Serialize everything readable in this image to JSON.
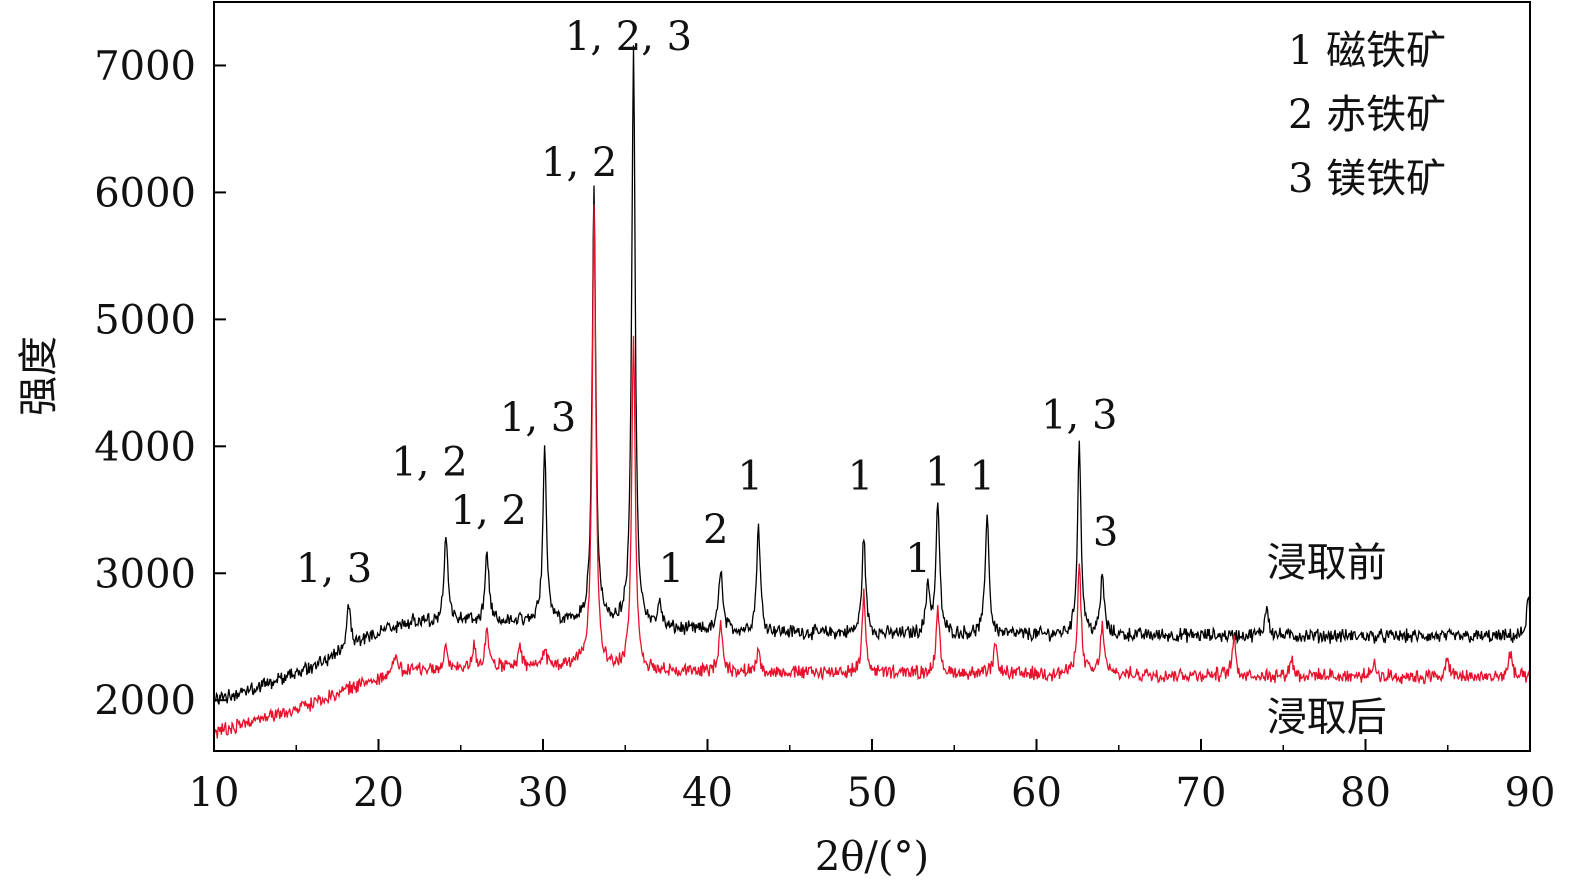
{
  "chart_data": {
    "type": "line",
    "xlabel": "2θ/(°)",
    "ylabel": "强度",
    "xlim": [
      10,
      90
    ],
    "ylim": [
      1600,
      7500
    ],
    "xticks": [
      10,
      20,
      30,
      40,
      50,
      60,
      70,
      80,
      90
    ],
    "yticks": [
      2000,
      3000,
      4000,
      5000,
      6000,
      7000
    ],
    "legend_placement": "top-right",
    "legend": [
      {
        "text": "1 磁铁矿"
      },
      {
        "text": "2 赤铁矿"
      },
      {
        "text": "3 镁铁矿"
      }
    ],
    "series": [
      {
        "name": "浸取前",
        "color": "#000000",
        "label_pos": [
          74,
          2980
        ],
        "baseline": [
          [
            10,
            2000
          ],
          [
            15,
            2200
          ],
          [
            20,
            2530
          ],
          [
            22,
            2620
          ],
          [
            32,
            2620
          ],
          [
            36,
            2560
          ],
          [
            50,
            2520
          ],
          [
            90,
            2500
          ]
        ],
        "peaks": [
          [
            18.2,
            2750
          ],
          [
            24.1,
            3320
          ],
          [
            26.6,
            3170
          ],
          [
            30.1,
            3980
          ],
          [
            33.1,
            6020
          ],
          [
            35.5,
            7100
          ],
          [
            37.1,
            2760
          ],
          [
            40.8,
            3050
          ],
          [
            43.1,
            3380
          ],
          [
            49.5,
            3300
          ],
          [
            53.4,
            2910
          ],
          [
            54.0,
            3560
          ],
          [
            57.0,
            3490
          ],
          [
            62.6,
            4020
          ],
          [
            64.0,
            2990
          ],
          [
            74.0,
            2750
          ],
          [
            89.9,
            2790
          ]
        ]
      },
      {
        "name": "浸取后",
        "color": "#e8102a",
        "label_pos": [
          74,
          1760
        ],
        "baseline": [
          [
            10,
            1750
          ],
          [
            15,
            1930
          ],
          [
            20,
            2180
          ],
          [
            22,
            2240
          ],
          [
            32,
            2270
          ],
          [
            35,
            2230
          ],
          [
            90,
            2180
          ]
        ],
        "peaks": [
          [
            21.0,
            2370
          ],
          [
            24.1,
            2400
          ],
          [
            25.8,
            2420
          ],
          [
            26.6,
            2580
          ],
          [
            28.6,
            2400
          ],
          [
            30.1,
            2420
          ],
          [
            33.1,
            5900
          ],
          [
            35.5,
            4860
          ],
          [
            40.8,
            2630
          ],
          [
            43.1,
            2390
          ],
          [
            49.5,
            2820
          ],
          [
            54.0,
            2700
          ],
          [
            57.5,
            2430
          ],
          [
            62.6,
            3050
          ],
          [
            64.0,
            2600
          ],
          [
            72.0,
            2480
          ],
          [
            75.5,
            2330
          ],
          [
            80.5,
            2280
          ],
          [
            85.0,
            2320
          ],
          [
            88.8,
            2380
          ]
        ]
      }
    ],
    "annotations": [
      {
        "text": "1, 3",
        "x": 17.3,
        "y": 2930
      },
      {
        "text": "1, 2",
        "x": 23.1,
        "y": 3770
      },
      {
        "text": "1, 2",
        "x": 26.7,
        "y": 3390
      },
      {
        "text": "1, 3",
        "x": 29.7,
        "y": 4120
      },
      {
        "text": "1, 2",
        "x": 32.2,
        "y": 6130
      },
      {
        "text": "1, 2, 3",
        "x": 35.2,
        "y": 7120
      },
      {
        "text": "1",
        "x": 37.8,
        "y": 2930
      },
      {
        "text": "2",
        "x": 40.5,
        "y": 3240
      },
      {
        "text": "1",
        "x": 42.6,
        "y": 3660
      },
      {
        "text": "1",
        "x": 49.3,
        "y": 3660
      },
      {
        "text": "1",
        "x": 52.8,
        "y": 3010
      },
      {
        "text": "1",
        "x": 54.0,
        "y": 3690
      },
      {
        "text": "1",
        "x": 56.7,
        "y": 3660
      },
      {
        "text": "1, 3",
        "x": 62.6,
        "y": 4140
      },
      {
        "text": "3",
        "x": 64.2,
        "y": 3220
      }
    ]
  }
}
